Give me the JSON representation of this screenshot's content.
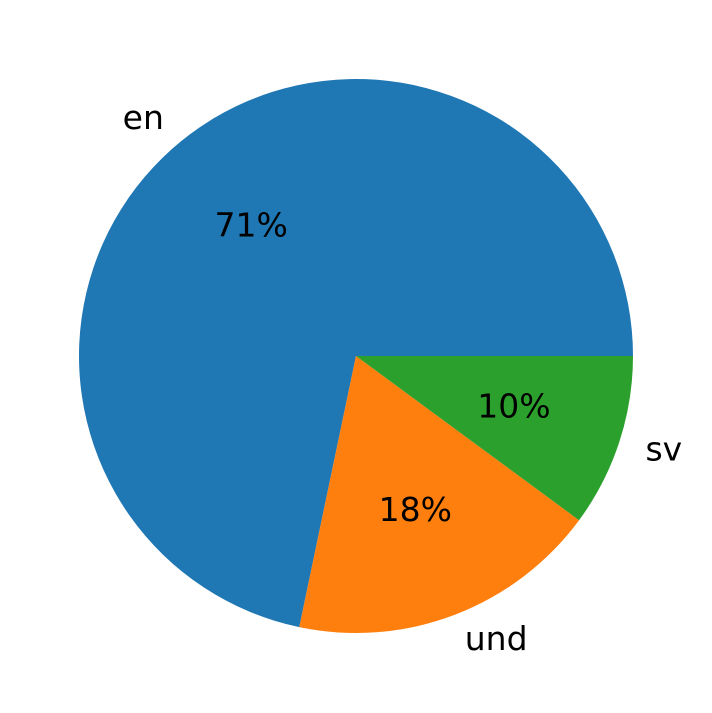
{
  "chart_data": {
    "type": "pie",
    "categories": [
      "en",
      "und",
      "sv"
    ],
    "values": [
      71,
      18,
      10
    ],
    "value_labels": [
      "71%",
      "18%",
      "10%"
    ],
    "colors": [
      "#1f77b4",
      "#ff7f0e",
      "#2ca02c"
    ]
  }
}
